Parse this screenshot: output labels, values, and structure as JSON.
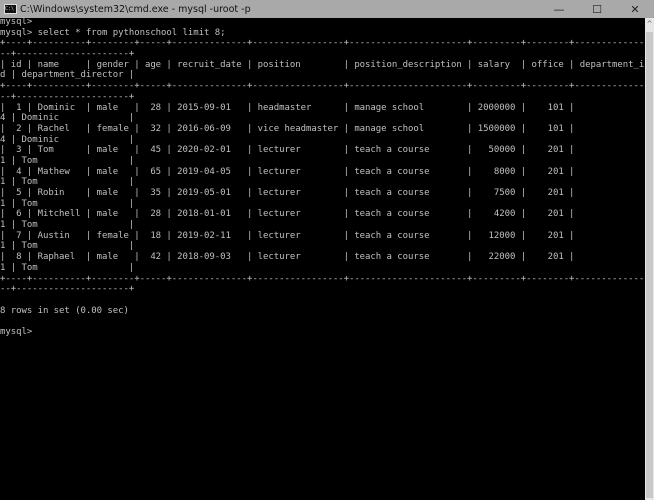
{
  "window": {
    "title": "C:\\Windows\\system32\\cmd.exe - mysql  -uroot -p",
    "app_icon": "cmd-icon",
    "app_icon_text": "C:\\",
    "buttons": {
      "minimize": "—",
      "maximize": "☐",
      "close": "✕"
    },
    "scroll_up": "^"
  },
  "console": {
    "prompt": "mysql>",
    "command": "select * from pythonschool limit 8;",
    "wrap_columns": 120,
    "table": {
      "columns": [
        "id",
        "name",
        "gender",
        "age",
        "recruit_date",
        "position",
        "position_description",
        "salary",
        "office",
        "department_id",
        "department_director"
      ],
      "align": [
        "r",
        "l",
        "l",
        "r",
        "l",
        "l",
        "l",
        "r",
        "r",
        "r",
        "l"
      ],
      "rows": [
        [
          "1",
          "Dominic",
          "male",
          "28",
          "2015-09-01",
          "headmaster",
          "manage school",
          "2000000",
          "101",
          "4",
          "Dominic"
        ],
        [
          "2",
          "Rachel",
          "female",
          "32",
          "2016-06-09",
          "vice headmaster",
          "manage school",
          "1500000",
          "101",
          "4",
          "Dominic"
        ],
        [
          "3",
          "Tom",
          "male",
          "45",
          "2020-02-01",
          "lecturer",
          "teach a course",
          "50000",
          "201",
          "1",
          "Tom"
        ],
        [
          "4",
          "Mathew",
          "male",
          "65",
          "2019-04-05",
          "lecturer",
          "teach a course",
          "8000",
          "201",
          "1",
          "Tom"
        ],
        [
          "5",
          "Robin",
          "male",
          "35",
          "2019-05-01",
          "lecturer",
          "teach a course",
          "7500",
          "201",
          "1",
          "Tom"
        ],
        [
          "6",
          "Mitchell",
          "male",
          "28",
          "2018-01-01",
          "lecturer",
          "teach a course",
          "4200",
          "201",
          "1",
          "Tom"
        ],
        [
          "7",
          "Austin",
          "female",
          "18",
          "2019-02-11",
          "lecturer",
          "teach a course",
          "12000",
          "201",
          "1",
          "Tom"
        ],
        [
          "8",
          "Raphael",
          "male",
          "42",
          "2018-09-03",
          "lecturer",
          "teach a course",
          "22000",
          "201",
          "1",
          "Tom"
        ]
      ]
    },
    "summary": "8 rows in set (0.00 sec)"
  }
}
